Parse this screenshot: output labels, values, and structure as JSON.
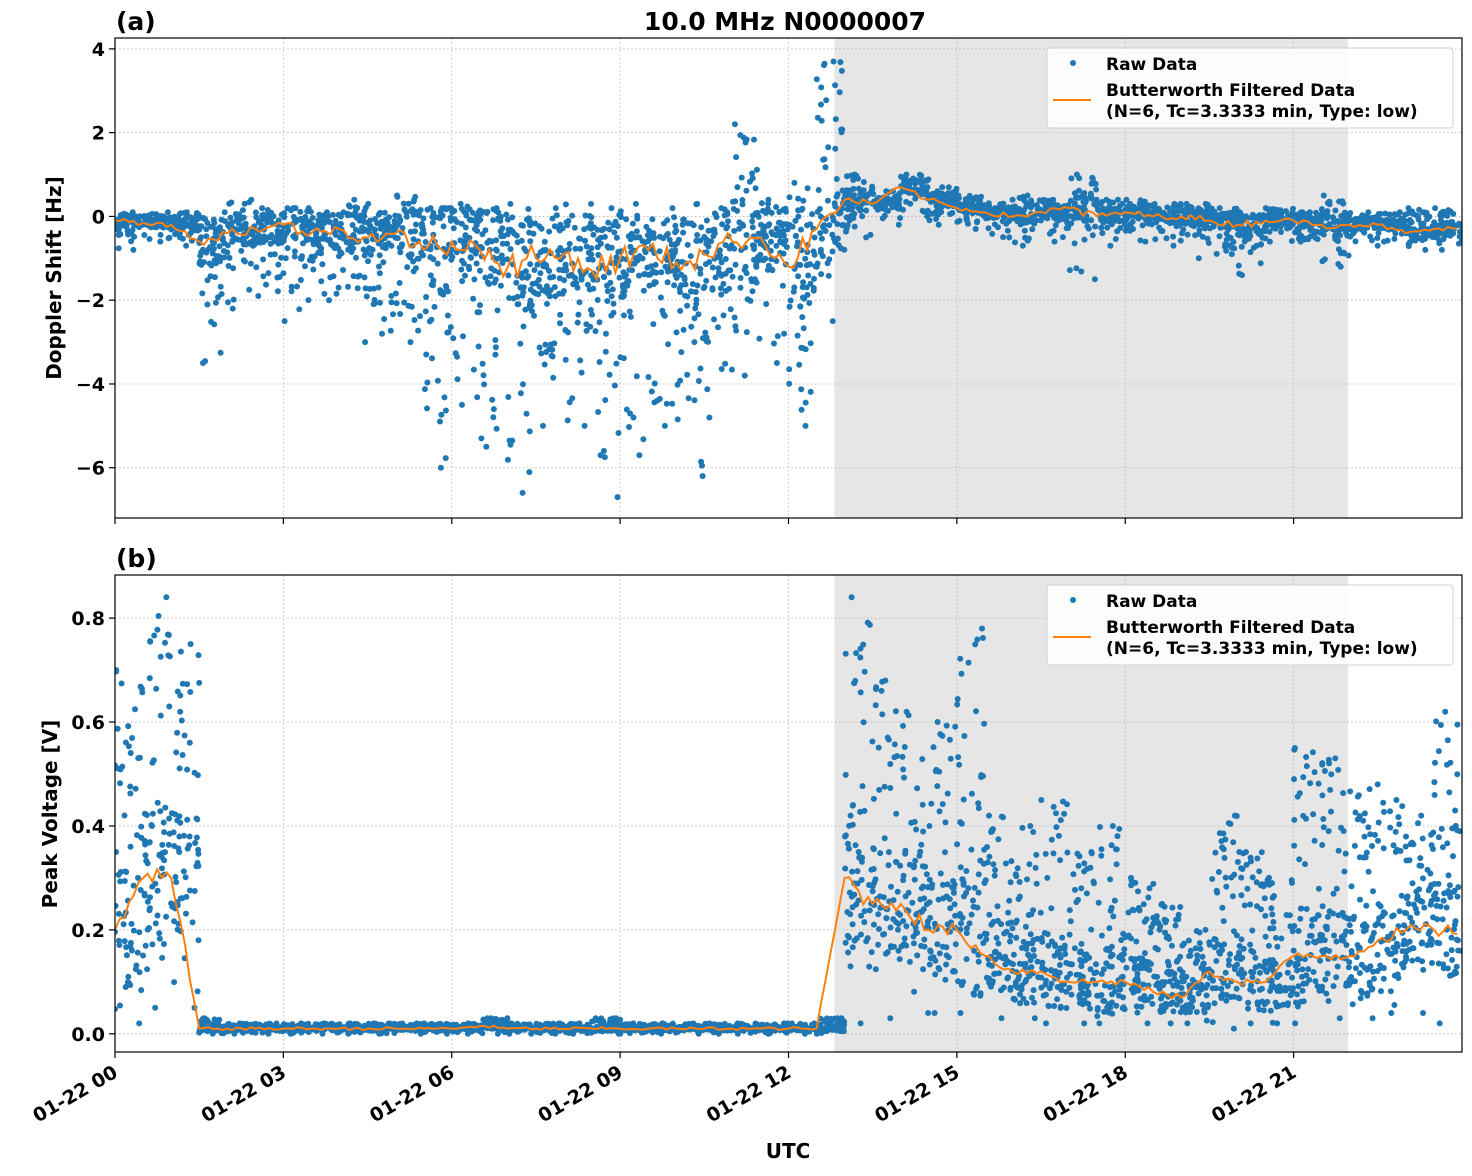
{
  "title": "10.0 MHz N0000007",
  "chart_data": [
    {
      "type": "scatter",
      "panel_label": "(a)",
      "ylabel": "Doppler Shift [Hz]",
      "xlabel": "",
      "ylim": [
        -7.2,
        4.26
      ],
      "yticks": [
        4,
        2,
        0,
        -2,
        -4,
        -6
      ],
      "ytick_labels": [
        "4",
        "2",
        "0",
        "−2",
        "−4",
        "−6"
      ],
      "grid": true,
      "legend_position": "top-right",
      "legend": [
        "Raw Data",
        "Butterworth Filtered Data",
        "(N=6, Tc=3.3333 min, Type: low)"
      ],
      "binned_series": [
        [
          "00:00",
          -0.1,
          -0.8,
          0.1
        ],
        [
          "00:30",
          -0.15,
          -0.6,
          0.1
        ],
        [
          "01:00",
          -0.2,
          -0.7,
          0.1
        ],
        [
          "01:30",
          -0.6,
          -3.5,
          0.1
        ],
        [
          "02:00",
          -0.4,
          -2.2,
          0.4
        ],
        [
          "02:30",
          -0.3,
          -1.9,
          0.2
        ],
        [
          "03:00",
          -0.2,
          -2.5,
          0.2
        ],
        [
          "03:30",
          -0.4,
          -2.0,
          0.1
        ],
        [
          "04:00",
          -0.3,
          -3.0,
          0.4
        ],
        [
          "04:30",
          -0.5,
          -2.8,
          0.3
        ],
        [
          "05:00",
          -0.4,
          -3.0,
          0.5
        ],
        [
          "05:30",
          -0.8,
          -6.0,
          0.2
        ],
        [
          "06:00",
          -0.6,
          -4.5,
          0.3
        ],
        [
          "06:30",
          -0.8,
          -5.5,
          0.2
        ],
        [
          "07:00",
          -1.2,
          -6.6,
          0.3
        ],
        [
          "07:30",
          -1.0,
          -5.0,
          0.2
        ],
        [
          "08:00",
          -0.9,
          -5.0,
          0.3
        ],
        [
          "08:30",
          -1.3,
          -6.7,
          0.2
        ],
        [
          "09:00",
          -1.0,
          -5.7,
          0.3
        ],
        [
          "09:30",
          -0.8,
          -5.0,
          0.2
        ],
        [
          "10:00",
          -1.1,
          -6.2,
          0.3
        ],
        [
          "10:30",
          -0.9,
          -4.8,
          0.2
        ],
        [
          "11:00",
          -0.6,
          -3.8,
          2.2
        ],
        [
          "11:30",
          -0.5,
          -3.5,
          0.4
        ],
        [
          "12:00",
          -1.2,
          -5.0,
          0.8
        ],
        [
          "12:30",
          -0.3,
          -2.5,
          3.7
        ],
        [
          "13:00",
          0.4,
          -0.5,
          1.0
        ],
        [
          "13:30",
          0.3,
          -0.2,
          0.6
        ],
        [
          "14:00",
          0.7,
          0.0,
          1.0
        ],
        [
          "14:30",
          0.4,
          -0.2,
          0.7
        ],
        [
          "15:00",
          0.2,
          -0.3,
          0.5
        ],
        [
          "15:30",
          0.1,
          -0.5,
          0.4
        ],
        [
          "16:00",
          0.0,
          -0.7,
          0.5
        ],
        [
          "16:30",
          0.1,
          -0.6,
          0.4
        ],
        [
          "17:00",
          0.2,
          -1.5,
          1.0
        ],
        [
          "17:30",
          0.0,
          -0.7,
          0.4
        ],
        [
          "18:00",
          0.1,
          -0.6,
          0.4
        ],
        [
          "18:30",
          0.0,
          -0.7,
          0.3
        ],
        [
          "19:00",
          0.0,
          -1.0,
          0.3
        ],
        [
          "19:30",
          -0.1,
          -0.9,
          0.2
        ],
        [
          "20:00",
          -0.2,
          -1.4,
          0.1
        ],
        [
          "20:30",
          -0.1,
          -0.6,
          0.2
        ],
        [
          "21:00",
          -0.1,
          -0.6,
          0.1
        ],
        [
          "21:30",
          -0.2,
          -1.2,
          0.5
        ],
        [
          "22:00",
          -0.2,
          -0.7,
          0.1
        ],
        [
          "22:30",
          -0.2,
          -0.6,
          0.1
        ],
        [
          "23:00",
          -0.4,
          -0.8,
          0.2
        ],
        [
          "23:30",
          -0.3,
          -0.8,
          0.2
        ]
      ]
    },
    {
      "type": "scatter",
      "panel_label": "(b)",
      "ylabel": "Peak Voltage [V]",
      "xlabel": "UTC",
      "ylim": [
        -0.035,
        0.883
      ],
      "yticks": [
        0.0,
        0.2,
        0.4,
        0.6,
        0.8
      ],
      "ytick_labels": [
        "0.0",
        "0.2",
        "0.4",
        "0.6",
        "0.8"
      ],
      "grid": true,
      "legend_position": "top-right",
      "legend": [
        "Raw Data",
        "Butterworth Filtered Data",
        "(N=6, Tc=3.3333 min, Type: low)"
      ],
      "binned_series": [
        [
          "00:00",
          0.2,
          0.02,
          0.7
        ],
        [
          "00:30",
          0.3,
          0.05,
          0.84
        ],
        [
          "01:00",
          0.3,
          0.05,
          0.75
        ],
        [
          "01:30",
          0.01,
          0.0,
          0.03
        ],
        [
          "02:00",
          0.01,
          0.0,
          0.02
        ],
        [
          "02:30",
          0.01,
          0.0,
          0.02
        ],
        [
          "03:00",
          0.01,
          0.0,
          0.02
        ],
        [
          "03:30",
          0.01,
          0.0,
          0.02
        ],
        [
          "04:00",
          0.01,
          0.0,
          0.02
        ],
        [
          "04:30",
          0.01,
          0.0,
          0.02
        ],
        [
          "05:00",
          0.01,
          0.0,
          0.02
        ],
        [
          "05:30",
          0.01,
          0.0,
          0.02
        ],
        [
          "06:00",
          0.01,
          0.0,
          0.02
        ],
        [
          "06:30",
          0.015,
          0.0,
          0.03
        ],
        [
          "07:00",
          0.01,
          0.0,
          0.02
        ],
        [
          "07:30",
          0.01,
          0.0,
          0.02
        ],
        [
          "08:00",
          0.01,
          0.0,
          0.02
        ],
        [
          "08:30",
          0.01,
          0.0,
          0.03
        ],
        [
          "09:00",
          0.01,
          0.0,
          0.02
        ],
        [
          "09:30",
          0.01,
          0.0,
          0.02
        ],
        [
          "10:00",
          0.01,
          0.0,
          0.02
        ],
        [
          "10:30",
          0.01,
          0.0,
          0.02
        ],
        [
          "11:00",
          0.01,
          0.0,
          0.02
        ],
        [
          "11:30",
          0.01,
          0.0,
          0.02
        ],
        [
          "12:00",
          0.01,
          0.0,
          0.02
        ],
        [
          "12:30",
          0.01,
          0.0,
          0.03
        ],
        [
          "13:00",
          0.3,
          0.02,
          0.84
        ],
        [
          "13:30",
          0.25,
          0.03,
          0.68
        ],
        [
          "14:00",
          0.25,
          0.04,
          0.62
        ],
        [
          "14:30",
          0.2,
          0.04,
          0.6
        ],
        [
          "15:00",
          0.2,
          0.04,
          0.78
        ],
        [
          "15:30",
          0.15,
          0.03,
          0.42
        ],
        [
          "16:00",
          0.12,
          0.03,
          0.4
        ],
        [
          "16:30",
          0.12,
          0.02,
          0.45
        ],
        [
          "17:00",
          0.1,
          0.02,
          0.35
        ],
        [
          "17:30",
          0.1,
          0.02,
          0.4
        ],
        [
          "18:00",
          0.1,
          0.02,
          0.3
        ],
        [
          "18:30",
          0.08,
          0.02,
          0.25
        ],
        [
          "19:00",
          0.07,
          0.02,
          0.2
        ],
        [
          "19:30",
          0.12,
          0.01,
          0.42
        ],
        [
          "20:00",
          0.1,
          0.02,
          0.35
        ],
        [
          "20:30",
          0.1,
          0.02,
          0.3
        ],
        [
          "21:00",
          0.15,
          0.02,
          0.55
        ],
        [
          "21:30",
          0.15,
          0.03,
          0.53
        ],
        [
          "22:00",
          0.15,
          0.03,
          0.48
        ],
        [
          "22:30",
          0.18,
          0.04,
          0.45
        ],
        [
          "23:00",
          0.2,
          0.04,
          0.42
        ],
        [
          "23:30",
          0.2,
          0.02,
          0.62
        ]
      ]
    }
  ],
  "x_axis": {
    "label": "UTC",
    "range": [
      "01-22 00:00",
      "01-23 00:00"
    ],
    "tick_labels": [
      "01-22 00",
      "01-22 03",
      "01-22 06",
      "01-22 09",
      "01-22 12",
      "01-22 15",
      "01-22 18",
      "01-22 21"
    ]
  },
  "shaded_span": [
    "01-22 12:49",
    "01-22 21:58"
  ],
  "colors": {
    "raw": "#1f77b4",
    "filtered": "#ff7f0e",
    "shade": "#e6e6e6"
  }
}
